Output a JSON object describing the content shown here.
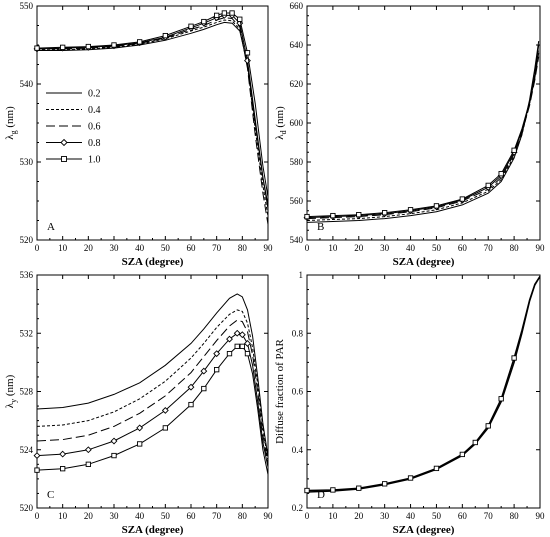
{
  "chart_data": [
    {
      "type": "line",
      "panel_label": "A",
      "xlabel": "SZA (degree)",
      "ylabel": {
        "main": "λ",
        "sub": "g",
        "unit": " (nm)"
      },
      "xlim": [
        0,
        90
      ],
      "ylim": [
        520,
        550
      ],
      "xticks": [
        0,
        10,
        20,
        30,
        40,
        50,
        60,
        70,
        80,
        90
      ],
      "yticks": [
        520,
        530,
        540,
        550
      ],
      "legend": {
        "placement": "left",
        "entries": [
          {
            "label": "0.2",
            "style": "solid"
          },
          {
            "label": "0.4",
            "style": "dashed"
          },
          {
            "label": "0.6",
            "style": "longdash"
          },
          {
            "label": "0.8",
            "style": "diamond"
          },
          {
            "label": "1.0",
            "style": "square"
          }
        ]
      },
      "series": [
        {
          "x": [
            0,
            10,
            20,
            30,
            40,
            50,
            60,
            65,
            70,
            73,
            76,
            79,
            82,
            85,
            88,
            90
          ],
          "y": [
            544.3,
            544.3,
            544.4,
            544.6,
            545.0,
            545.6,
            546.5,
            547.0,
            547.6,
            547.9,
            547.8,
            546.8,
            542.5,
            535.0,
            528.0,
            524.0
          ]
        },
        {
          "x": [
            0,
            10,
            20,
            30,
            40,
            50,
            60,
            65,
            70,
            73,
            76,
            79,
            82,
            85,
            88,
            90
          ],
          "y": [
            544.4,
            544.4,
            544.5,
            544.7,
            545.1,
            545.8,
            546.8,
            547.3,
            547.9,
            548.2,
            548.1,
            547.0,
            542.3,
            534.2,
            527.0,
            523.0
          ]
        },
        {
          "x": [
            0,
            10,
            20,
            30,
            40,
            50,
            60,
            65,
            70,
            73,
            76,
            79,
            82,
            85,
            88,
            90
          ],
          "y": [
            544.5,
            544.5,
            544.6,
            544.8,
            545.2,
            545.9,
            547.0,
            547.5,
            548.2,
            548.5,
            548.4,
            547.3,
            542.0,
            533.5,
            526.0,
            522.0
          ]
        },
        {
          "x": [
            0,
            10,
            20,
            30,
            40,
            50,
            60,
            65,
            70,
            73,
            76,
            79,
            82,
            85,
            88,
            90
          ],
          "y": [
            544.5,
            544.6,
            544.7,
            544.9,
            545.3,
            546.0,
            547.2,
            547.8,
            548.5,
            548.8,
            548.8,
            547.8,
            543.0,
            535.5,
            528.0,
            524.5
          ],
          "markers": "diamond"
        },
        {
          "x": [
            0,
            10,
            20,
            30,
            40,
            50,
            60,
            65,
            70,
            73,
            76,
            79,
            82,
            85,
            88,
            90
          ],
          "y": [
            544.6,
            544.7,
            544.8,
            545.0,
            545.4,
            546.2,
            547.4,
            548.0,
            548.8,
            549.1,
            549.1,
            548.3,
            544.0,
            537.5,
            529.5,
            525.5
          ],
          "markers": "square"
        }
      ]
    },
    {
      "type": "line",
      "panel_label": "B",
      "xlabel": "SZA (degree)",
      "ylabel": {
        "main": "λ",
        "sub": "d",
        "unit": " (nm)"
      },
      "xlim": [
        0,
        90
      ],
      "ylim": [
        540,
        660
      ],
      "xticks": [
        0,
        10,
        20,
        30,
        40,
        50,
        60,
        70,
        80,
        90
      ],
      "yticks": [
        540,
        560,
        580,
        600,
        620,
        640,
        660
      ],
      "series": [
        {
          "x": [
            0,
            10,
            20,
            30,
            40,
            50,
            60,
            70,
            75,
            80,
            83,
            86,
            88,
            89.5
          ],
          "y": [
            549,
            549.5,
            550,
            551,
            552.5,
            554.5,
            558,
            564,
            570,
            582,
            594,
            612,
            628,
            642
          ]
        },
        {
          "x": [
            0,
            10,
            20,
            30,
            40,
            50,
            60,
            70,
            75,
            80,
            83,
            86,
            88,
            89.5
          ],
          "y": [
            550,
            550.5,
            551,
            552,
            553.5,
            555.5,
            559,
            565,
            571,
            583,
            594,
            610,
            625,
            638
          ]
        },
        {
          "x": [
            0,
            10,
            20,
            30,
            40,
            50,
            60,
            70,
            75,
            80,
            83,
            86,
            88,
            89.5
          ],
          "y": [
            551,
            551.5,
            552,
            553,
            554.5,
            556.5,
            560,
            566,
            572,
            584,
            595,
            609,
            622,
            634
          ]
        },
        {
          "x": [
            0,
            10,
            20,
            30,
            40,
            50,
            60,
            70,
            75,
            80,
            83,
            86,
            88,
            89.5
          ],
          "y": [
            551.5,
            552,
            552.5,
            553.5,
            555,
            557,
            560.5,
            567,
            573,
            585,
            596,
            610,
            623,
            636
          ],
          "markers": "diamond"
        },
        {
          "x": [
            0,
            10,
            20,
            30,
            40,
            50,
            60,
            70,
            75,
            80,
            83,
            86,
            88,
            89.5
          ],
          "y": [
            552,
            552.5,
            553,
            554,
            555.5,
            557.5,
            561,
            568,
            574,
            586,
            597,
            611,
            625,
            640
          ],
          "markers": "square"
        }
      ]
    },
    {
      "type": "line",
      "panel_label": "C",
      "xlabel": "SZA (degree)",
      "ylabel": {
        "main": "λ",
        "sub": "y",
        "unit": " (nm)"
      },
      "xlim": [
        0,
        90
      ],
      "ylim": [
        520,
        536
      ],
      "xticks": [
        0,
        10,
        20,
        30,
        40,
        50,
        60,
        70,
        80,
        90
      ],
      "yticks": [
        520,
        524,
        528,
        532,
        536
      ],
      "series": [
        {
          "x": [
            0,
            10,
            20,
            30,
            40,
            50,
            60,
            65,
            70,
            75,
            78,
            80,
            82,
            84,
            86,
            88,
            90
          ],
          "y": [
            526.8,
            526.9,
            527.2,
            527.8,
            528.6,
            529.8,
            531.3,
            532.3,
            533.4,
            534.4,
            534.7,
            534.5,
            533.6,
            531.8,
            529.0,
            525.8,
            523.5
          ]
        },
        {
          "x": [
            0,
            10,
            20,
            30,
            40,
            50,
            60,
            65,
            70,
            75,
            78,
            80,
            82,
            84,
            86,
            88,
            90
          ],
          "y": [
            525.6,
            525.7,
            526.0,
            526.6,
            527.5,
            528.7,
            530.3,
            531.3,
            532.4,
            533.3,
            533.6,
            533.5,
            532.7,
            531.0,
            528.5,
            525.5,
            523.2
          ]
        },
        {
          "x": [
            0,
            10,
            20,
            30,
            40,
            50,
            60,
            65,
            70,
            75,
            78,
            80,
            82,
            84,
            86,
            88,
            90
          ],
          "y": [
            524.6,
            524.7,
            525.0,
            525.6,
            526.5,
            527.7,
            529.3,
            530.4,
            531.5,
            532.5,
            532.9,
            532.8,
            532.1,
            530.5,
            528.0,
            525.0,
            523.0
          ]
        },
        {
          "x": [
            0,
            10,
            20,
            30,
            40,
            50,
            60,
            65,
            70,
            75,
            78,
            80,
            82,
            84,
            86,
            88,
            90
          ],
          "y": [
            523.6,
            523.7,
            524.0,
            524.6,
            525.5,
            526.7,
            528.3,
            529.4,
            530.6,
            531.6,
            532.0,
            531.9,
            531.3,
            529.8,
            527.3,
            524.5,
            522.8
          ],
          "markers": "diamond"
        },
        {
          "x": [
            0,
            10,
            20,
            30,
            40,
            50,
            60,
            65,
            70,
            75,
            78,
            80,
            82,
            84,
            86,
            88,
            90
          ],
          "y": [
            522.6,
            522.7,
            523.0,
            523.6,
            524.4,
            525.5,
            527.1,
            528.2,
            529.5,
            530.6,
            531.1,
            531.1,
            530.6,
            529.2,
            526.8,
            524.0,
            522.3
          ],
          "markers": "square"
        }
      ]
    },
    {
      "type": "line",
      "panel_label": "D",
      "xlabel": "SZA (degree)",
      "ylabel": {
        "main": "Diffuse fraction of PAR",
        "sub": "",
        "unit": ""
      },
      "xlim": [
        0,
        90
      ],
      "ylim": [
        0.2,
        1.0
      ],
      "xticks": [
        0,
        10,
        20,
        30,
        40,
        50,
        60,
        70,
        80,
        90
      ],
      "yticks": [
        0.2,
        0.4,
        0.6,
        0.8,
        1.0
      ],
      "ytick_labels": [
        "0.2",
        "0.4",
        "0.6",
        "0.8",
        "1"
      ],
      "series": [
        {
          "x": [
            0,
            10,
            20,
            30,
            40,
            50,
            60,
            65,
            70,
            75,
            80,
            83,
            86,
            88,
            90
          ],
          "y": [
            0.255,
            0.258,
            0.265,
            0.28,
            0.3,
            0.333,
            0.38,
            0.42,
            0.475,
            0.565,
            0.7,
            0.8,
            0.91,
            0.965,
            0.995
          ]
        },
        {
          "x": [
            0,
            10,
            20,
            30,
            40,
            50,
            60,
            65,
            70,
            75,
            80,
            83,
            86,
            88,
            90
          ],
          "y": [
            0.26,
            0.262,
            0.268,
            0.283,
            0.303,
            0.336,
            0.384,
            0.425,
            0.482,
            0.575,
            0.715,
            0.81,
            0.915,
            0.968,
            0.996
          ],
          "markers": "square"
        }
      ]
    }
  ]
}
